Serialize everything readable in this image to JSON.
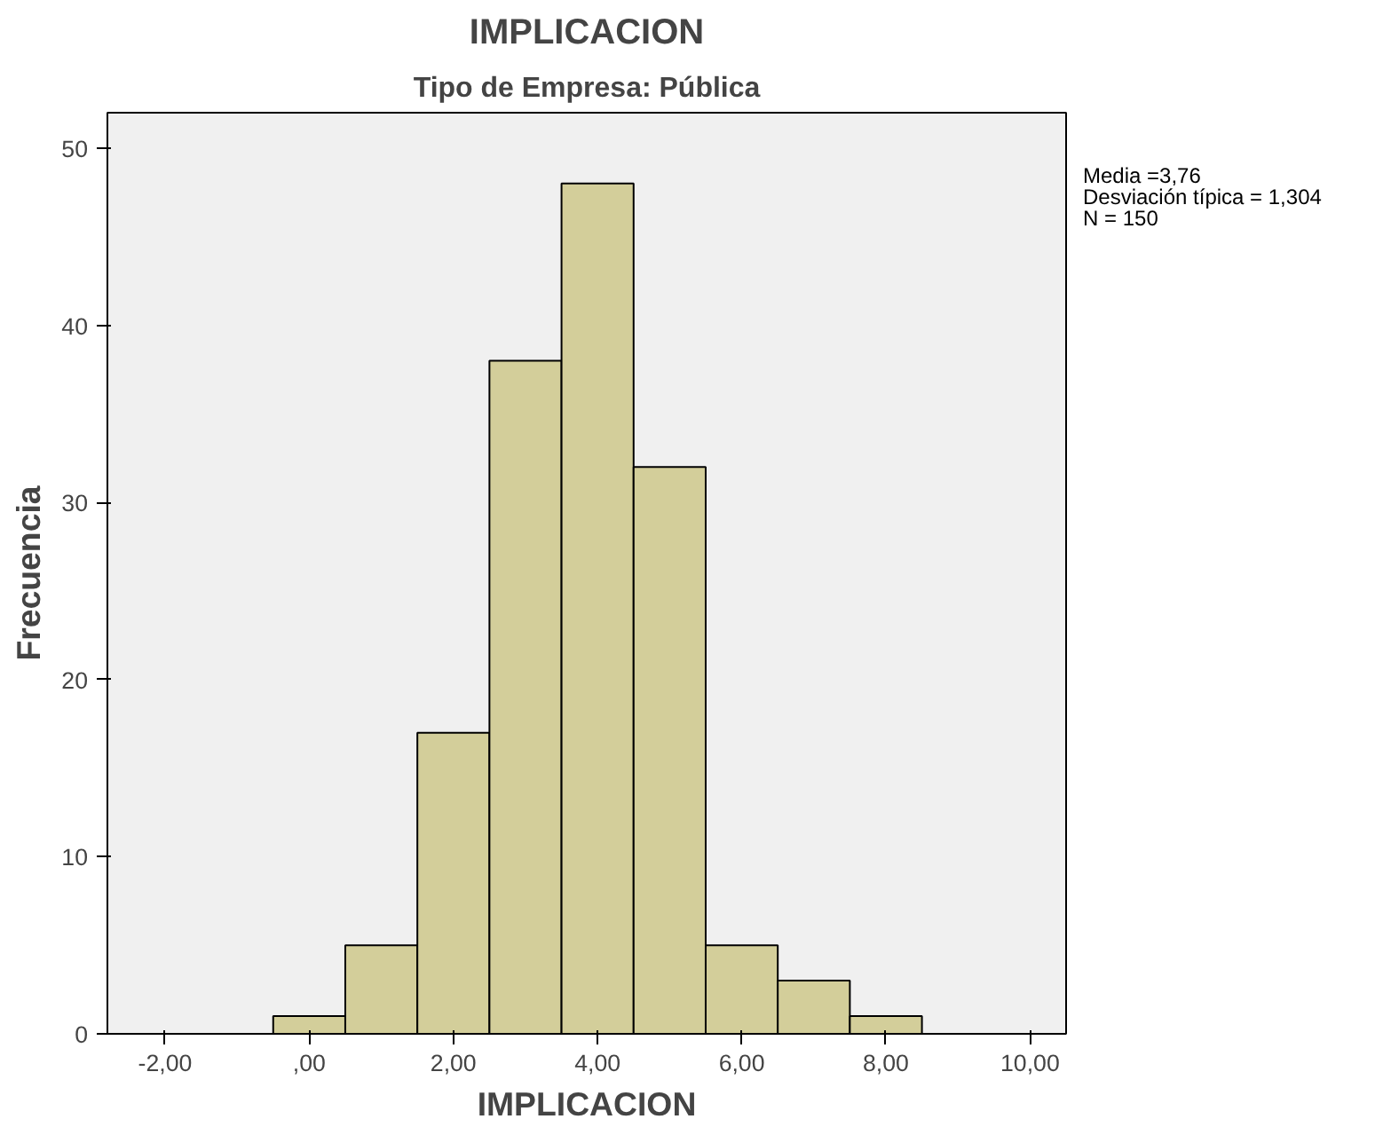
{
  "chart_data": {
    "type": "histogram",
    "title": "IMPLICACION",
    "subtitle": "Tipo de Empresa: Pública",
    "xlabel": "IMPLICACION",
    "ylabel": "Frecuencia",
    "bins": [
      -0.5,
      0.5,
      1.5,
      2.5,
      3.5,
      4.5,
      5.5,
      6.5,
      7.5,
      8.5
    ],
    "values": [
      1,
      5,
      17,
      38,
      48,
      32,
      5,
      3,
      1
    ],
    "color": "#d3ce9a",
    "xlim": [
      -2.8,
      10.5
    ],
    "ylim": [
      0,
      52
    ],
    "xticks": [
      {
        "value": -2,
        "label": "-2,00"
      },
      {
        "value": 0,
        "label": ",00"
      },
      {
        "value": 2,
        "label": "2,00"
      },
      {
        "value": 4,
        "label": "4,00"
      },
      {
        "value": 6,
        "label": "6,00"
      },
      {
        "value": 8,
        "label": "8,00"
      },
      {
        "value": 10,
        "label": "10,00"
      }
    ],
    "yticks": [
      0,
      10,
      20,
      30,
      40,
      50
    ],
    "annotations": [
      "Media =3,76",
      "Desviación típica = 1,304",
      "N = 150"
    ],
    "grid": false
  }
}
